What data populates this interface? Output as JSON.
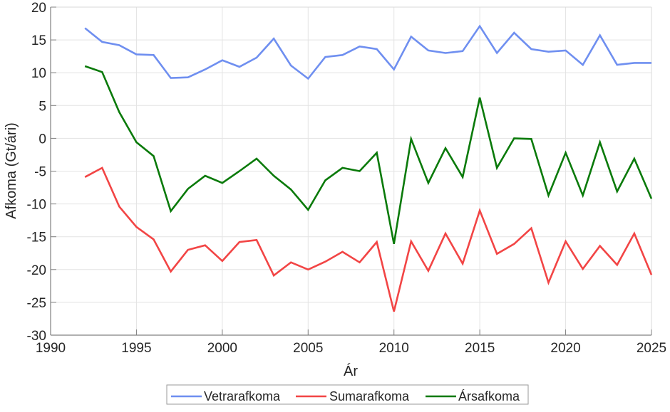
{
  "chart_data": {
    "type": "line",
    "title": "",
    "xlabel": "Ár",
    "ylabel": "Afkoma (Gt/ári)",
    "xlim": [
      1990,
      2025
    ],
    "ylim": [
      -30,
      20
    ],
    "xticks": [
      1990,
      1995,
      2000,
      2005,
      2010,
      2015,
      2020,
      2025
    ],
    "yticks": [
      20,
      15,
      10,
      5,
      0,
      -5,
      -10,
      -15,
      -20,
      -25,
      -30
    ],
    "grid": true,
    "legend_position": "bottom-outside",
    "x": [
      1992,
      1993,
      1994,
      1995,
      1996,
      1997,
      1998,
      1999,
      2000,
      2001,
      2002,
      2003,
      2004,
      2005,
      2006,
      2007,
      2008,
      2009,
      2010,
      2011,
      2012,
      2013,
      2014,
      2015,
      2016,
      2017,
      2018,
      2019,
      2020,
      2021,
      2022,
      2023,
      2024,
      2025
    ],
    "series": [
      {
        "name": "Vetrarafkoma",
        "color": "#6f8ff0",
        "values": [
          16.8,
          14.7,
          14.2,
          12.8,
          12.7,
          9.2,
          9.3,
          10.5,
          11.9,
          10.9,
          12.3,
          15.2,
          11.1,
          9.1,
          12.4,
          12.7,
          14.0,
          13.6,
          10.5,
          15.5,
          13.4,
          13.0,
          13.3,
          17.1,
          13.0,
          16.1,
          13.6,
          13.2,
          13.4,
          11.2,
          15.7,
          11.2,
          11.5,
          11.5
        ]
      },
      {
        "name": "Sumarafkoma",
        "color": "#f24545",
        "values": [
          -5.9,
          -4.5,
          -10.4,
          -13.5,
          -15.4,
          -20.3,
          -17.0,
          -16.3,
          -18.7,
          -15.8,
          -15.5,
          -20.9,
          -18.9,
          -20.0,
          -18.8,
          -17.3,
          -18.9,
          -15.8,
          -26.4,
          -15.7,
          -20.2,
          -14.5,
          -19.1,
          -11.0,
          -17.6,
          -16.1,
          -13.7,
          -22.0,
          -15.7,
          -19.9,
          -16.4,
          -19.3,
          -14.5,
          -20.8
        ]
      },
      {
        "name": "Ársafkoma",
        "color": "#0a7a0a",
        "values": [
          11.0,
          10.1,
          4.0,
          -0.6,
          -2.7,
          -11.1,
          -7.7,
          -5.7,
          -6.8,
          -5.0,
          -3.1,
          -5.7,
          -7.8,
          -10.9,
          -6.4,
          -4.5,
          -5.0,
          -2.2,
          -16.1,
          -0.1,
          -6.8,
          -1.5,
          -5.9,
          6.2,
          -4.5,
          0.0,
          -0.1,
          -8.7,
          -2.2,
          -8.7,
          -0.6,
          -8.1,
          -3.1,
          -9.2
        ]
      }
    ]
  },
  "legend": {
    "items": [
      {
        "label": "Vetrarafkoma",
        "color": "#6f8ff0"
      },
      {
        "label": "Sumarafkoma",
        "color": "#f24545"
      },
      {
        "label": "Ársafkoma",
        "color": "#0a7a0a"
      }
    ]
  },
  "style": {
    "axis_color": "#808080",
    "grid_color": "#e3e3e3",
    "box_color": "#d9d9d9"
  }
}
